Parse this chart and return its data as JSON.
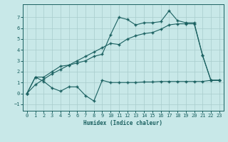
{
  "background_color": "#c8e8e8",
  "grid_color": "#a8cccc",
  "line_color": "#1a6060",
  "xlim": [
    -0.5,
    23.5
  ],
  "ylim": [
    -1.6,
    8.2
  ],
  "xticks": [
    0,
    1,
    2,
    3,
    4,
    5,
    6,
    7,
    8,
    9,
    10,
    11,
    12,
    13,
    14,
    15,
    16,
    17,
    18,
    19,
    20,
    21,
    22,
    23
  ],
  "yticks": [
    -1,
    0,
    1,
    2,
    3,
    4,
    5,
    6,
    7
  ],
  "xlabel": "Humidex (Indice chaleur)",
  "curve1_x": [
    0,
    1,
    2,
    3,
    4,
    5,
    6,
    7,
    8,
    9,
    10,
    11,
    12,
    13,
    14,
    15,
    16,
    17,
    18,
    19,
    20,
    21,
    22,
    23
  ],
  "curve1_y": [
    0.0,
    1.5,
    1.1,
    0.5,
    0.2,
    0.6,
    0.6,
    -0.2,
    -0.7,
    1.2,
    1.0,
    1.0,
    1.0,
    1.0,
    1.05,
    1.05,
    1.1,
    1.1,
    1.1,
    1.1,
    1.1,
    1.1,
    1.2,
    1.2
  ],
  "curve2_x": [
    0,
    1,
    2,
    3,
    4,
    5,
    6,
    7,
    8,
    9,
    10,
    11,
    12,
    13,
    14,
    15,
    16,
    17,
    18,
    19,
    20,
    21,
    22,
    23
  ],
  "curve2_y": [
    0.0,
    1.5,
    1.5,
    2.0,
    2.5,
    2.6,
    2.8,
    3.0,
    3.4,
    3.6,
    5.4,
    7.0,
    6.8,
    6.3,
    6.5,
    6.5,
    6.6,
    7.6,
    6.7,
    6.5,
    6.5,
    3.5,
    1.2,
    1.2
  ],
  "curve3_x": [
    0,
    1,
    2,
    3,
    4,
    5,
    6,
    7,
    8,
    9,
    10,
    11,
    12,
    13,
    14,
    15,
    16,
    17,
    18,
    19,
    20,
    21,
    22,
    23
  ],
  "curve3_y": [
    0.0,
    0.8,
    1.3,
    1.8,
    2.2,
    2.6,
    3.0,
    3.4,
    3.8,
    4.2,
    4.6,
    4.5,
    5.0,
    5.3,
    5.5,
    5.6,
    5.9,
    6.3,
    6.4,
    6.4,
    6.4,
    3.5,
    1.2,
    1.2
  ],
  "marker": "+",
  "markersize": 3.5,
  "linewidth": 0.8,
  "tick_fontsize": 5.0,
  "xlabel_fontsize": 5.5
}
